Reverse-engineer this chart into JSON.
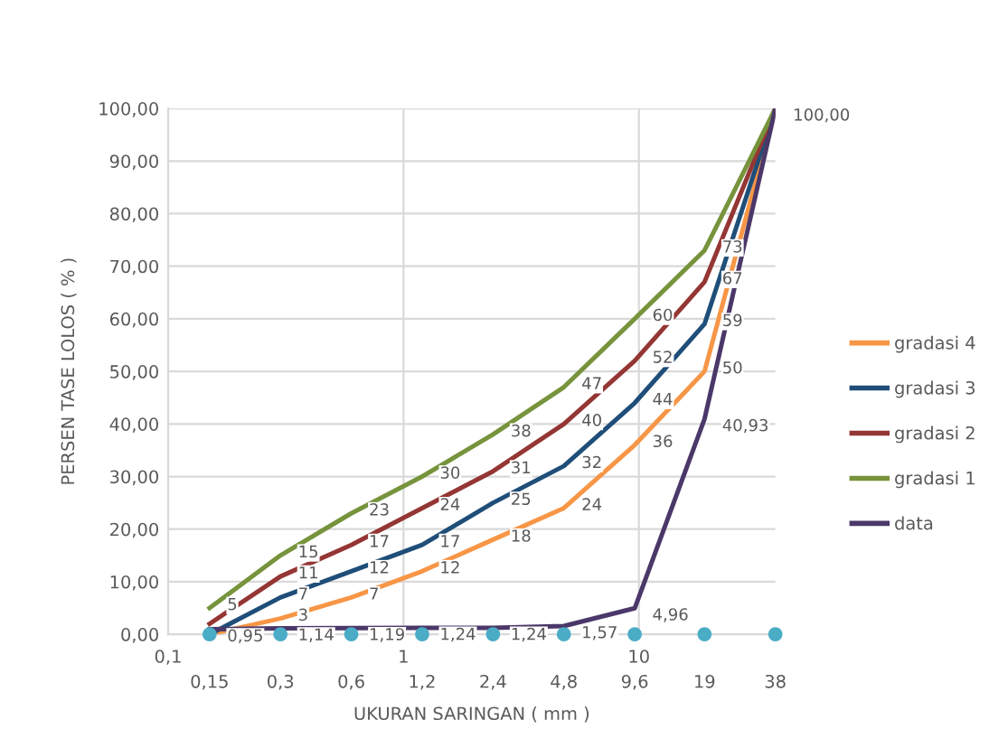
{
  "chart_data": {
    "type": "line",
    "xlabel": "UKURAN SARINGAN ( mm )",
    "ylabel": "PERSEN TASE LOLOS ( % )",
    "x": [
      0.15,
      0.3,
      0.6,
      1.2,
      2.4,
      4.8,
      9.6,
      19,
      38
    ],
    "log": "x",
    "xlim": [
      0.1,
      38
    ],
    "xticks": [
      {
        "value": 0.1,
        "label": "0,1"
      },
      1,
      10
    ],
    "ylim": [
      0,
      100
    ],
    "yticks": [
      {
        "value": 0,
        "label": "0,00"
      },
      {
        "value": 10,
        "label": "10,00"
      },
      {
        "value": 20,
        "label": "20,00"
      },
      {
        "value": 30,
        "label": "30,00"
      },
      {
        "value": 40,
        "label": "40,00"
      },
      {
        "value": 50,
        "label": "50,00"
      },
      {
        "value": 60,
        "label": "60,00"
      },
      {
        "value": 70,
        "label": "70,00"
      },
      {
        "value": 80,
        "label": "80,00"
      },
      {
        "value": 90,
        "label": "90,00"
      },
      {
        "value": 100,
        "label": "100,00"
      }
    ],
    "grid": true,
    "legend": "right",
    "marker": "none",
    "series": [
      {
        "name": "gradasi 4",
        "color": "#f79646",
        "values": [
          0,
          3,
          7,
          12,
          18,
          24,
          36,
          50,
          100
        ],
        "value_labels": [
          null,
          "3",
          "7",
          "12",
          "18",
          "24",
          "36",
          "50",
          null
        ]
      },
      {
        "name": "gradasi 3",
        "color": "#1f4e79",
        "values": [
          0,
          7,
          12,
          17,
          25,
          32,
          44,
          59,
          100
        ],
        "value_labels": [
          null,
          "7",
          "12",
          "17",
          "25",
          "32",
          "44",
          "59",
          null
        ]
      },
      {
        "name": "gradasi 2",
        "color": "#943634",
        "values": [
          2,
          11,
          17,
          24,
          31,
          40,
          52,
          67,
          100
        ],
        "value_labels": [
          null,
          "11",
          "17",
          "24",
          "31",
          "40",
          "52",
          "67",
          null
        ]
      },
      {
        "name": "gradasi 1",
        "color": "#77933c",
        "values": [
          5,
          15,
          23,
          30,
          38,
          47,
          60,
          73,
          100
        ],
        "value_labels": [
          "5",
          "15",
          "23",
          "30",
          "38",
          "47",
          "60",
          "73",
          null
        ]
      },
      {
        "name": "data",
        "color": "#4b3869",
        "values": [
          0.95,
          1.14,
          1.19,
          1.24,
          1.24,
          1.57,
          4.96,
          40.93,
          100
        ],
        "value_labels": [
          "0,95",
          "1,14",
          "1,19",
          "1,24",
          "1,24",
          "1,57",
          "4,96",
          "40,93",
          "100,00"
        ]
      },
      {
        "type": "scatter",
        "color": "#4bacc6",
        "marker": "circle",
        "values": [
          0,
          0,
          0,
          0,
          0,
          0,
          0,
          0,
          0
        ]
      }
    ],
    "annotations": [
      {
        "text": "0,15",
        "x": 0.15,
        "y": 0
      },
      {
        "text": "0,3",
        "x": 0.3,
        "y": 0
      },
      {
        "text": "0,6",
        "x": 0.6,
        "y": 0
      },
      {
        "text": "1,2",
        "x": 1.2,
        "y": 0
      },
      {
        "text": "2,4",
        "x": 2.4,
        "y": 0
      },
      {
        "text": "4,8",
        "x": 4.8,
        "y": 0
      },
      {
        "text": "9,6",
        "x": 9.6,
        "y": 0
      },
      {
        "text": "19",
        "x": 19,
        "y": 0
      },
      {
        "text": "38",
        "x": 38,
        "y": 0
      }
    ]
  }
}
